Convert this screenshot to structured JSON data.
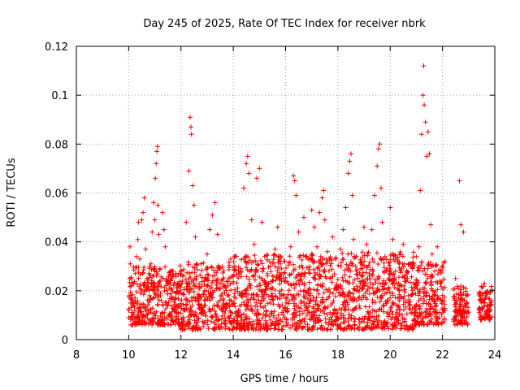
{
  "chart_data": {
    "type": "scatter",
    "title": "Day 245 of 2025, Rate Of TEC Index for receiver nbrk",
    "xlabel": "GPS time / hours",
    "ylabel": "ROTI / TECUs",
    "xlim": [
      8,
      24
    ],
    "ylim": [
      0,
      0.12
    ],
    "xticks": [
      8,
      10,
      12,
      14,
      16,
      18,
      20,
      22,
      24
    ],
    "xtick_labels": [
      "8",
      "10",
      "12",
      "14",
      "16",
      "18",
      "20",
      "22",
      "24"
    ],
    "yticks": [
      0,
      0.02,
      0.04,
      0.06,
      0.08,
      0.1,
      0.12
    ],
    "ytick_labels": [
      "0",
      "0.02",
      "0.04",
      "0.06",
      "0.08",
      "0.1",
      "0.12"
    ],
    "grid": true,
    "marker": "plus",
    "color": "#ff0000",
    "series": [
      {
        "name": "ROTI",
        "points": [
          [
            10.0,
            0.012
          ],
          [
            10.02,
            0.018
          ],
          [
            10.04,
            0.025
          ],
          [
            10.06,
            0.031
          ],
          [
            10.05,
            0.038
          ],
          [
            10.08,
            0.015
          ],
          [
            10.1,
            0.022
          ],
          [
            10.15,
            0.009
          ],
          [
            10.2,
            0.014
          ],
          [
            10.25,
            0.027
          ],
          [
            10.3,
            0.034
          ],
          [
            10.35,
            0.041
          ],
          [
            10.38,
            0.048
          ],
          [
            10.42,
            0.033
          ],
          [
            10.45,
            0.019
          ],
          [
            10.5,
            0.049
          ],
          [
            10.55,
            0.052
          ],
          [
            10.6,
            0.058
          ],
          [
            10.65,
            0.037
          ],
          [
            10.7,
            0.025
          ],
          [
            10.75,
            0.012
          ],
          [
            10.8,
            0.018
          ],
          [
            10.85,
            0.031
          ],
          [
            10.9,
            0.044
          ],
          [
            10.95,
            0.056
          ],
          [
            11.0,
            0.049
          ],
          [
            11.02,
            0.066
          ],
          [
            11.05,
            0.072
          ],
          [
            11.08,
            0.077
          ],
          [
            11.1,
            0.079
          ],
          [
            11.12,
            0.055
          ],
          [
            11.15,
            0.043
          ],
          [
            11.2,
            0.029
          ],
          [
            11.25,
            0.016
          ],
          [
            11.3,
            0.052
          ],
          [
            11.35,
            0.045
          ],
          [
            11.4,
            0.038
          ],
          [
            11.45,
            0.024
          ],
          [
            11.5,
            0.014
          ],
          [
            11.6,
            0.021
          ],
          [
            11.7,
            0.028
          ],
          [
            11.8,
            0.017
          ],
          [
            11.9,
            0.011
          ],
          [
            12.0,
            0.019
          ],
          [
            12.1,
            0.026
          ],
          [
            12.2,
            0.048
          ],
          [
            12.3,
            0.069
          ],
          [
            12.35,
            0.091
          ],
          [
            12.38,
            0.087
          ],
          [
            12.4,
            0.084
          ],
          [
            12.45,
            0.063
          ],
          [
            12.5,
            0.055
          ],
          [
            12.55,
            0.042
          ],
          [
            12.6,
            0.031
          ],
          [
            12.7,
            0.018
          ],
          [
            12.8,
            0.013
          ],
          [
            12.9,
            0.024
          ],
          [
            13.0,
            0.035
          ],
          [
            13.1,
            0.045
          ],
          [
            13.2,
            0.051
          ],
          [
            13.3,
            0.056
          ],
          [
            13.4,
            0.043
          ],
          [
            13.5,
            0.029
          ],
          [
            13.6,
            0.019
          ],
          [
            13.7,
            0.014
          ],
          [
            13.8,
            0.022
          ],
          [
            13.9,
            0.033
          ],
          [
            14.0,
            0.026
          ],
          [
            14.1,
            0.017
          ],
          [
            14.2,
            0.012
          ],
          [
            14.3,
            0.028
          ],
          [
            14.4,
            0.062
          ],
          [
            14.5,
            0.072
          ],
          [
            14.55,
            0.075
          ],
          [
            14.6,
            0.068
          ],
          [
            14.7,
            0.049
          ],
          [
            14.8,
            0.039
          ],
          [
            14.9,
            0.066
          ],
          [
            15.0,
            0.07
          ],
          [
            15.1,
            0.048
          ],
          [
            15.2,
            0.034
          ],
          [
            15.3,
            0.021
          ],
          [
            15.4,
            0.015
          ],
          [
            15.5,
            0.024
          ],
          [
            15.6,
            0.037
          ],
          [
            15.7,
            0.046
          ],
          [
            15.8,
            0.031
          ],
          [
            15.9,
            0.018
          ],
          [
            16.0,
            0.012
          ],
          [
            16.1,
            0.023
          ],
          [
            16.2,
            0.038
          ],
          [
            16.3,
            0.067
          ],
          [
            16.35,
            0.065
          ],
          [
            16.4,
            0.059
          ],
          [
            16.5,
            0.044
          ],
          [
            16.6,
            0.027
          ],
          [
            16.7,
            0.05
          ],
          [
            16.8,
            0.034
          ],
          [
            16.9,
            0.021
          ],
          [
            17.0,
            0.053
          ],
          [
            17.1,
            0.046
          ],
          [
            17.2,
            0.038
          ],
          [
            17.3,
            0.052
          ],
          [
            17.4,
            0.058
          ],
          [
            17.45,
            0.061
          ],
          [
            17.5,
            0.049
          ],
          [
            17.6,
            0.036
          ],
          [
            17.7,
            0.025
          ],
          [
            17.8,
            0.042
          ],
          [
            17.9,
            0.033
          ],
          [
            18.0,
            0.021
          ],
          [
            18.1,
            0.037
          ],
          [
            18.2,
            0.045
          ],
          [
            18.3,
            0.054
          ],
          [
            18.4,
            0.068
          ],
          [
            18.45,
            0.073
          ],
          [
            18.5,
            0.076
          ],
          [
            18.55,
            0.059
          ],
          [
            18.6,
            0.041
          ],
          [
            18.7,
            0.028
          ],
          [
            18.8,
            0.017
          ],
          [
            18.9,
            0.032
          ],
          [
            19.0,
            0.046
          ],
          [
            19.1,
            0.039
          ],
          [
            19.2,
            0.027
          ],
          [
            19.3,
            0.045
          ],
          [
            19.4,
            0.059
          ],
          [
            19.5,
            0.071
          ],
          [
            19.55,
            0.078
          ],
          [
            19.6,
            0.08
          ],
          [
            19.65,
            0.062
          ],
          [
            19.7,
            0.048
          ],
          [
            19.8,
            0.034
          ],
          [
            19.9,
            0.029
          ],
          [
            20.0,
            0.054
          ],
          [
            20.1,
            0.041
          ],
          [
            20.2,
            0.028
          ],
          [
            20.3,
            0.017
          ],
          [
            20.4,
            0.035
          ],
          [
            20.5,
            0.039
          ],
          [
            20.6,
            0.024
          ],
          [
            20.7,
            0.015
          ],
          [
            20.8,
            0.011
          ],
          [
            20.9,
            0.023
          ],
          [
            21.0,
            0.034
          ],
          [
            21.1,
            0.038
          ],
          [
            21.15,
            0.061
          ],
          [
            21.2,
            0.084
          ],
          [
            21.25,
            0.1
          ],
          [
            21.28,
            0.112
          ],
          [
            21.3,
            0.096
          ],
          [
            21.35,
            0.089
          ],
          [
            21.4,
            0.075
          ],
          [
            21.45,
            0.085
          ],
          [
            21.5,
            0.076
          ],
          [
            21.55,
            0.047
          ],
          [
            21.6,
            0.035
          ],
          [
            21.7,
            0.028
          ],
          [
            21.8,
            0.038
          ],
          [
            21.9,
            0.024
          ],
          [
            22.0,
            0.016
          ],
          [
            22.1,
            0.012
          ],
          [
            22.5,
            0.025
          ],
          [
            22.6,
            0.021
          ],
          [
            22.65,
            0.065
          ],
          [
            22.7,
            0.047
          ],
          [
            22.8,
            0.044
          ],
          [
            22.9,
            0.018
          ],
          [
            23.0,
            0.011
          ],
          [
            23.5,
            0.016
          ],
          [
            23.6,
            0.023
          ],
          [
            23.7,
            0.019
          ],
          [
            23.8,
            0.009
          ]
        ]
      }
    ],
    "dense_band": {
      "description": "background cloud of points between 0.004 and 0.03 from 10 to 23.9 hours",
      "segments": [
        {
          "x_range": [
            10.0,
            11.9
          ],
          "y_range": [
            0.006,
            0.03
          ]
        },
        {
          "x_range": [
            11.9,
            14.0
          ],
          "y_range": [
            0.004,
            0.032
          ]
        },
        {
          "x_range": [
            14.0,
            18.0
          ],
          "y_range": [
            0.004,
            0.035
          ]
        },
        {
          "x_range": [
            18.0,
            20.9
          ],
          "y_range": [
            0.004,
            0.036
          ]
        },
        {
          "x_range": [
            20.9,
            22.1
          ],
          "y_range": [
            0.006,
            0.032
          ]
        },
        {
          "x_range": [
            22.4,
            23.0
          ],
          "y_range": [
            0.006,
            0.022
          ]
        },
        {
          "x_range": [
            23.4,
            23.9
          ],
          "y_range": [
            0.008,
            0.022
          ]
        }
      ],
      "count": 2400,
      "seed": 245
    }
  }
}
